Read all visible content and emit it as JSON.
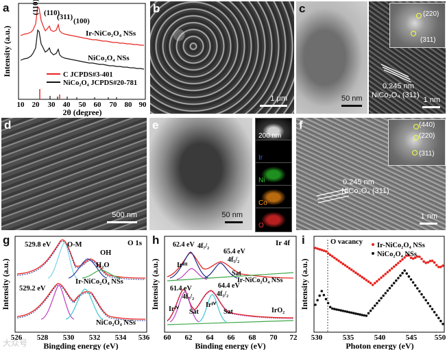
{
  "panels": {
    "a": {
      "label": "a",
      "xlabel": "2θ (degree)",
      "ylabel": "Intensity (a.u.)",
      "xticks": [
        "10",
        "20",
        "30",
        "40",
        "50",
        "60",
        "70",
        "80",
        "90"
      ],
      "peaks": [
        "(110)",
        "(311)",
        "(100)"
      ],
      "curve1": "Ir-NiCo₂O₄ NSs",
      "curve2": "NiCo₂O₄ NSs",
      "ref1": "C JCPDS#3-401",
      "ref2": "NiCo₂O₄ JCPDS#20-781",
      "colors": {
        "ir": "#e8231f",
        "nico": "#111111"
      }
    },
    "b": {
      "label": "b",
      "scale": "1 μm"
    },
    "c": {
      "label": "c",
      "scale_left": "50 nm",
      "scale_right": "1 nm",
      "lattice": "0.245 nm",
      "plane": "NiCo₂O₄ (311)",
      "fft": [
        "(220)",
        "(311)"
      ]
    },
    "d": {
      "label": "d",
      "scale": "500 nm"
    },
    "e": {
      "label": "e",
      "scale": "50 nm",
      "map_scale": "200 nm",
      "maps": [
        {
          "element": "Ir",
          "color": "#3a62ff"
        },
        {
          "element": "Ni",
          "color": "#33cc33"
        },
        {
          "element": "Co",
          "color": "#ff9a1a"
        },
        {
          "element": "O",
          "color": "#ff3333"
        }
      ]
    },
    "f": {
      "label": "f",
      "scale": "1 nm",
      "lattice": "0.245 nm",
      "plane": "NiCo₂O₄ (311)",
      "fft": [
        "(440)",
        "(220)",
        "(311)"
      ]
    },
    "g": {
      "label": "g",
      "title": "O 1s",
      "xlabel": "Bingding energy (eV)",
      "ylabel": "Intensity (a.u.)",
      "xticks": [
        "526",
        "528",
        "530",
        "532",
        "534",
        "536"
      ],
      "ann": [
        "529.8 eV",
        "O-M",
        "OH",
        "H₂O",
        "529.2 eV"
      ],
      "curve1": "Ir-NiCo₂O₄ NSs",
      "curve2": "NiCo₂O₄ NSs"
    },
    "h": {
      "label": "h",
      "title": "Ir 4f",
      "xlabel": "Binding energy (eV)",
      "ylabel": "Intensity (a.u.)",
      "xticks": [
        "60",
        "62",
        "64",
        "66",
        "68",
        "70",
        "72"
      ],
      "ann_top": [
        "62.4 eV",
        "4f₇/₂",
        "65.4 eV",
        "4f₅/₂",
        "Irᴵᴵᴵ",
        "Sat"
      ],
      "ann_bot": [
        "61.4 eV",
        "4f₇/₂",
        "64.4 eV",
        "4f₅/₂",
        "Irᴵⱽ",
        "Irᴵⱽ",
        "Sat",
        "Sat"
      ],
      "curve1": "Ir-NiCo₂O₄ NSs",
      "curve2": "IrO₂"
    },
    "i": {
      "label": "i",
      "xlabel": "Photon energy (eV)",
      "ylabel": "Intensity (a.u.)",
      "xticks": [
        "530",
        "535",
        "540",
        "545",
        "550"
      ],
      "ann": "O vacancy",
      "curve1": "Ir-NiCo₂O₄ NSs",
      "curve2": "NiCo₂O₄ NSs"
    }
  },
  "watermark": "大众号"
}
